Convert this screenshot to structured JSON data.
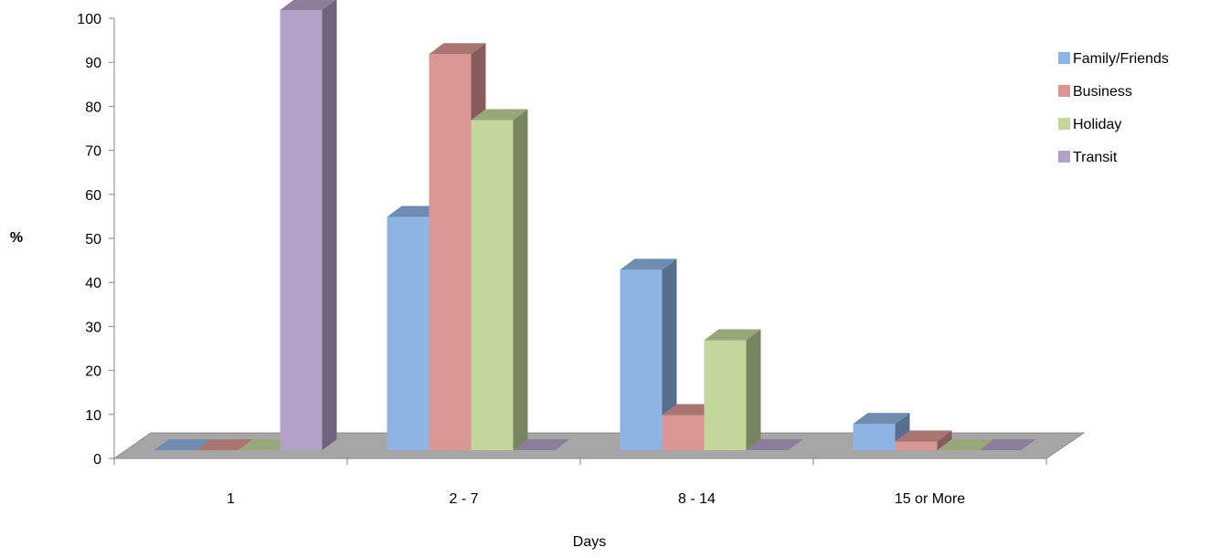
{
  "chart_data": {
    "type": "bar",
    "title": "",
    "xlabel": "Days",
    "ylabel": "%",
    "ylim": [
      0,
      100
    ],
    "ytick_step": 10,
    "categories": [
      "1",
      "2 - 7",
      "8 - 14",
      "15 or More"
    ],
    "series": [
      {
        "name": "Family/Friends",
        "values": [
          0,
          53,
          41,
          6
        ],
        "color": "#8eb4e3"
      },
      {
        "name": "Business",
        "values": [
          0,
          90,
          8,
          2
        ],
        "color": "#d99694"
      },
      {
        "name": "Holiday",
        "values": [
          0,
          75,
          25,
          0
        ],
        "color": "#c3d69b"
      },
      {
        "name": "Transit",
        "values": [
          100,
          0,
          0,
          0
        ],
        "color": "#b3a2c7"
      }
    ],
    "legend_position": "right",
    "style": "3d-clustered-column",
    "floor_color": "#a6a6a6"
  }
}
